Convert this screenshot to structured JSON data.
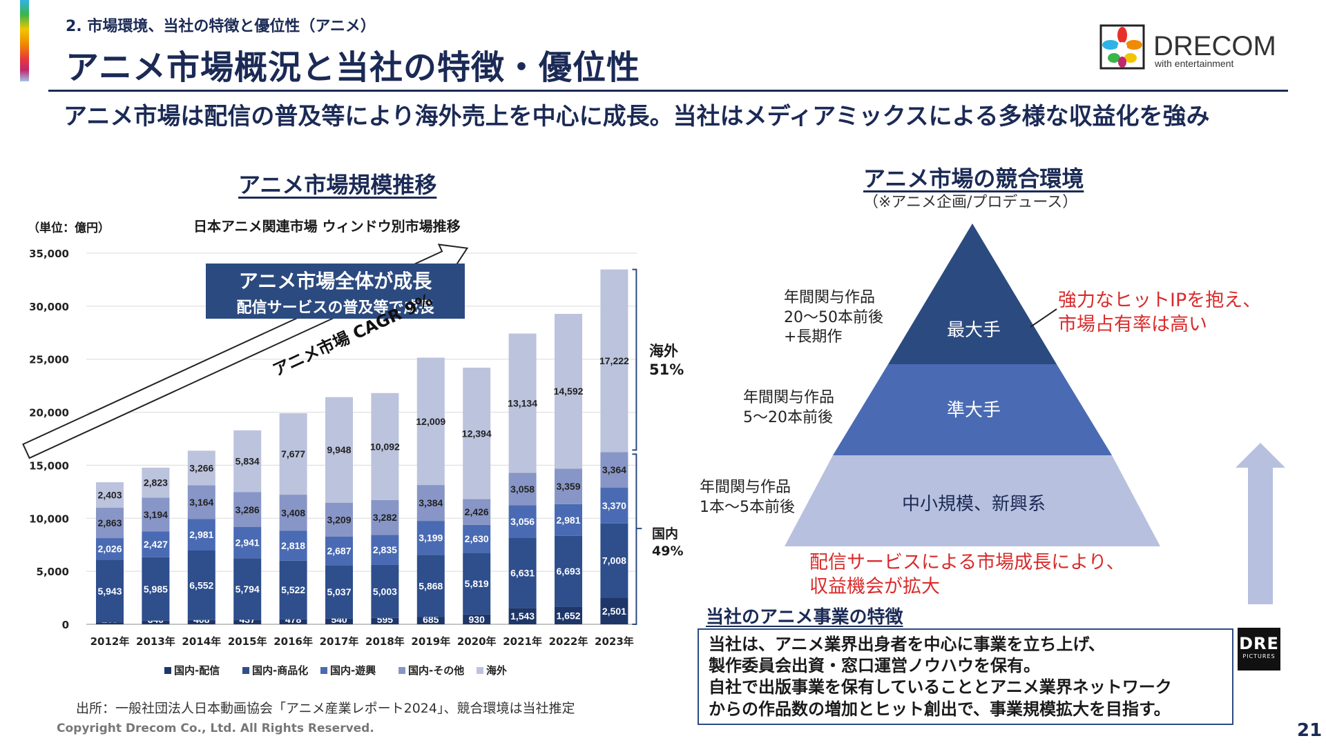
{
  "header": {
    "breadcrumb": "2. 市場環境、当社の特徴と優位性（アニメ）",
    "title": "アニメ市場概況と当社の特徴・優位性",
    "subtitle": "アニメ市場は配信の普及等により海外売上を中心に成長。当社はメディアミックスによる多様な収益化を強み",
    "logo_text": "DRECOM",
    "logo_tagline": "with entertainment"
  },
  "chart_section": {
    "heading": "アニメ市場規模推移",
    "unit_label": "（単位：億円）",
    "subtitle": "日本アニメ関連市場 ウィンドウ別市場推移",
    "growth_box_line1": "アニメ市場全体が成長",
    "growth_box_line2": "配信サービスの普及等で成長",
    "cagr_label": "アニメ市場 CAGR 9%",
    "overseas_label": "海外",
    "overseas_pct": "51%",
    "domestic_label": "国内",
    "domestic_pct": "49%",
    "source": "出所：一般社団法人日本動画協会「アニメ産業レポート2024」、競合環境は当社推定"
  },
  "chart_data": {
    "type": "bar",
    "stacked": true,
    "title": "日本アニメ関連市場 ウィンドウ別市場推移",
    "ylabel": "（単位：億円）",
    "ylim": [
      0,
      35000
    ],
    "yticks": [
      0,
      5000,
      10000,
      15000,
      20000,
      25000,
      30000,
      35000
    ],
    "ytick_labels": [
      "0",
      "5,000",
      "10,000",
      "15,000",
      "20,000",
      "25,000",
      "30,000",
      "35,000"
    ],
    "categories": [
      "2012年",
      "2013年",
      "2014年",
      "2015年",
      "2016年",
      "2017年",
      "2018年",
      "2019年",
      "2020年",
      "2021年",
      "2022年",
      "2023年"
    ],
    "legend_position": "bottom",
    "grid": true,
    "series": [
      {
        "name": "国内-配信",
        "color": "#1e3668",
        "values": [
          160,
          340,
          408,
          437,
          478,
          540,
          595,
          685,
          930,
          1543,
          1652,
          2501
        ]
      },
      {
        "name": "国内-商品化",
        "color": "#2e4e8c",
        "values": [
          5943,
          5985,
          6552,
          5794,
          5522,
          5037,
          5003,
          5868,
          5819,
          6631,
          6693,
          7008
        ]
      },
      {
        "name": "国内-遊興",
        "color": "#4a6bb3",
        "values": [
          2026,
          2427,
          2981,
          2941,
          2818,
          2687,
          2835,
          3199,
          2630,
          3056,
          2981,
          3370
        ]
      },
      {
        "name": "国内-その他",
        "color": "#8796c6",
        "values": [
          2863,
          3194,
          3164,
          3286,
          3408,
          3209,
          3282,
          3384,
          2426,
          3058,
          3359,
          3364
        ]
      },
      {
        "name": "海外",
        "color": "#bcc3dd",
        "values": [
          2403,
          2823,
          3266,
          5834,
          7677,
          9948,
          10092,
          12009,
          12394,
          13134,
          14592,
          17222
        ]
      }
    ]
  },
  "competition": {
    "heading": "アニメ市場の競合環境",
    "note": "（※アニメ企画/プロデュース）",
    "tiers": [
      {
        "label": "最大手",
        "note_lines": [
          "年間関与作品",
          "20〜50本前後",
          "+長期作"
        ],
        "color": "#2b4a80"
      },
      {
        "label": "準大手",
        "note_lines": [
          "年間関与作品",
          "5〜20本前後"
        ],
        "color": "#4a6bb3"
      },
      {
        "label": "中小規模、新興系",
        "note_lines": [
          "年間関与作品",
          "1本〜5本前後"
        ],
        "color": "#b7c0de"
      }
    ],
    "top_callout_lines": [
      "強力なヒットIPを抱え、",
      "市場占有率は高い"
    ],
    "bottom_callout_lines": [
      "配信サービスによる市場成長により、",
      "収益機会が拡大"
    ]
  },
  "features": {
    "title": "当社のアニメ事業の特徴",
    "lines": [
      "当社は、アニメ業界出身者を中心に事業を立ち上げ、",
      "製作委員会出資・窓口運営ノウハウを保有。",
      "自社で出版事業を保有していることとアニメ業界ネットワーク",
      "からの作品数の増加とヒット創出で、事業規模拡大を目指す。"
    ],
    "dre_logo_main": "DRE",
    "dre_logo_sub": "PICTURES"
  },
  "footer": {
    "copyright": "Copyright Drecom Co., Ltd. All Rights Reserved.",
    "page_number": "21"
  }
}
